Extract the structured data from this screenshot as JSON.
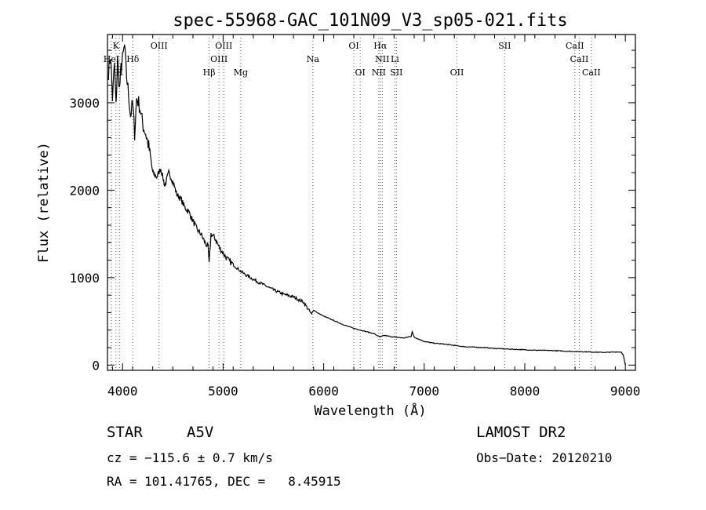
{
  "chart_data": {
    "type": "line",
    "title": "spec-55968-GAC_101N09_V3_sp05-021.fits",
    "xlabel": "Wavelength (Å)",
    "ylabel": "Flux (relative)",
    "xlim": [
      3850,
      9100
    ],
    "ylim": [
      -60,
      3780
    ],
    "xticks": [
      4000,
      5000,
      6000,
      7000,
      8000,
      9000
    ],
    "yticks": [
      0,
      1000,
      2000,
      3000
    ],
    "grid": false,
    "series": [
      {
        "x": [
          3860,
          3880,
          3900,
          3920,
          3935,
          3950,
          3970,
          3985,
          4000,
          4020,
          4040,
          4060,
          4080,
          4100,
          4120,
          4140,
          4160,
          4180,
          4200,
          4230,
          4260,
          4300,
          4340,
          4380,
          4420,
          4460,
          4500,
          4540,
          4580,
          4620,
          4660,
          4700,
          4740,
          4780,
          4820,
          4850,
          4861,
          4880,
          4920,
          4960,
          5000,
          5050,
          5100,
          5150,
          5200,
          5300,
          5400,
          5500,
          5600,
          5700,
          5800,
          5880,
          5900,
          5950,
          6000,
          6100,
          6200,
          6300,
          6400,
          6500,
          6560,
          6600,
          6700,
          6800,
          6870,
          6880,
          6900,
          7000,
          7100,
          7200,
          7300,
          7400,
          7500,
          7600,
          7700,
          7800,
          7900,
          8000,
          8100,
          8200,
          8300,
          8400,
          8500,
          8600,
          8700,
          8800,
          8900,
          8960,
          8980,
          9000
        ],
        "y": [
          3350,
          3550,
          3050,
          3450,
          2950,
          3500,
          3150,
          3400,
          3500,
          3650,
          3300,
          3100,
          2850,
          3000,
          2650,
          3050,
          3000,
          2900,
          2750,
          2650,
          2500,
          2200,
          2150,
          2250,
          2050,
          2200,
          2100,
          1950,
          1900,
          1800,
          1750,
          1650,
          1550,
          1500,
          1400,
          1350,
          1150,
          1500,
          1450,
          1350,
          1280,
          1200,
          1150,
          1100,
          1050,
          980,
          920,
          860,
          810,
          780,
          720,
          580,
          630,
          590,
          560,
          510,
          460,
          420,
          390,
          360,
          320,
          340,
          320,
          310,
          330,
          380,
          320,
          270,
          250,
          240,
          225,
          210,
          205,
          200,
          190,
          185,
          180,
          175,
          170,
          168,
          165,
          160,
          155,
          152,
          148,
          145,
          150,
          150,
          110,
          0
        ]
      }
    ],
    "line_markers": [
      {
        "label": "K",
        "x": 3934
      },
      {
        "label": "HeI",
        "x": 3889
      },
      {
        "label": "H",
        "x": 3969
      },
      {
        "label": "Hδ",
        "x": 4102
      },
      {
        "label": "OIII",
        "x": 4363
      },
      {
        "label": "Hβ",
        "x": 4861
      },
      {
        "label": "OIII",
        "x": 4959
      },
      {
        "label": "OIII",
        "x": 5007
      },
      {
        "label": "Mg",
        "x": 5175
      },
      {
        "label": "Na",
        "x": 5893
      },
      {
        "label": "OI",
        "x": 6300
      },
      {
        "label": "OI",
        "x": 6363
      },
      {
        "label": "Hα",
        "x": 6563
      },
      {
        "label": "NII",
        "x": 6583
      },
      {
        "label": "NII",
        "x": 6548
      },
      {
        "label": "Li",
        "x": 6708
      },
      {
        "label": "SII",
        "x": 6724
      },
      {
        "label": "OII",
        "x": 7325
      },
      {
        "label": "SII",
        "x": 7800
      },
      {
        "label": "CaII",
        "x": 8498
      },
      {
        "label": "CaII",
        "x": 8542
      },
      {
        "label": "CaII",
        "x": 8662
      }
    ]
  },
  "info": {
    "object_class": "STAR",
    "subclass": "A5V",
    "survey": "LAMOST DR2",
    "cz": "cz = −115.6 ± 0.7 km/s",
    "obs_date": "Obs−Date: 20120210",
    "coords": "RA = 101.41765, DEC =   8.45915"
  }
}
